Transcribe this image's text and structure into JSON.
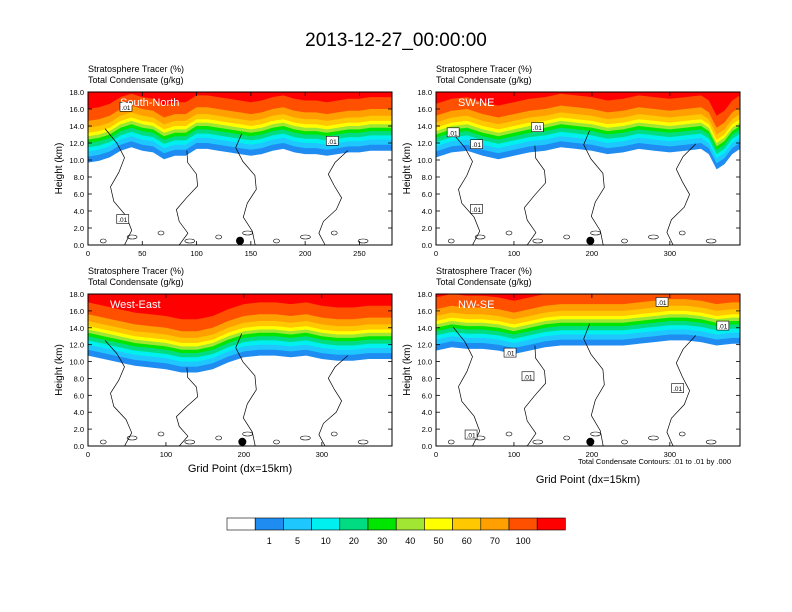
{
  "page": {
    "title": "2013-12-27_00:00:00"
  },
  "colorbar": {
    "colors": [
      "#ffffff",
      "#1e8cf0",
      "#1ec8ff",
      "#00f0f0",
      "#00dc82",
      "#00e600",
      "#a0e632",
      "#ffff00",
      "#ffc800",
      "#ffa000",
      "#ff5000",
      "#ff0000"
    ],
    "labels": [
      "1",
      "5",
      "10",
      "20",
      "30",
      "40",
      "50",
      "60",
      "70",
      "100"
    ]
  },
  "contour_note": "Total Condensate Contours: .01 to .01 by .000",
  "chart_data": [
    {
      "type": "heatmap",
      "label": "South-North",
      "title_left_1": "Stratosphere Tracer",
      "unit_1": "(%)",
      "title_left_2": "Total Condensate",
      "unit_2": "(g/kg)",
      "ylabel": "Height (km)",
      "xlabel": "",
      "xlim": [
        0,
        280
      ],
      "ylim": [
        0,
        18
      ],
      "xticks": [
        "0",
        "50",
        "100",
        "150",
        "200",
        "250"
      ],
      "xtick_values": [
        0,
        50,
        100,
        150,
        200,
        250
      ],
      "yticks": [
        "0.0",
        "2.0",
        "4.0",
        "6.0",
        "8.0",
        "10.0",
        "12.0",
        "14.0",
        "16.0",
        "18.0"
      ],
      "tropopause_top": [
        [
          0,
          13.8
        ],
        [
          10,
          14.0
        ],
        [
          20,
          14.4
        ],
        [
          30,
          15.2
        ],
        [
          40,
          15.6
        ],
        [
          50,
          15.2
        ],
        [
          60,
          15.0
        ],
        [
          70,
          14.2
        ],
        [
          80,
          14.6
        ],
        [
          90,
          14.6
        ],
        [
          100,
          15.4
        ],
        [
          110,
          15.4
        ],
        [
          120,
          15.2
        ],
        [
          130,
          15.0
        ],
        [
          140,
          14.8
        ],
        [
          150,
          14.6
        ],
        [
          160,
          14.8
        ],
        [
          170,
          15.2
        ],
        [
          180,
          15.4
        ],
        [
          190,
          15.0
        ],
        [
          200,
          14.8
        ],
        [
          210,
          14.8
        ],
        [
          220,
          14.6
        ],
        [
          230,
          14.8
        ],
        [
          240,
          15.0
        ],
        [
          250,
          15.0
        ],
        [
          260,
          15.2
        ],
        [
          270,
          15.2
        ],
        [
          280,
          15.2
        ]
      ],
      "marker_x": 140,
      "contour_labels": [
        {
          "text": ".01",
          "x": 32,
          "y": 3.0
        },
        {
          "text": ".01",
          "x": 225,
          "y": 12.2
        },
        {
          "text": ".01",
          "x": 35,
          "y": 16.2
        }
      ]
    },
    {
      "type": "heatmap",
      "label": "SW-NE",
      "title_left_1": "Stratosphere Tracer",
      "unit_1": "(%)",
      "title_left_2": "Total Condensate",
      "unit_2": "(g/kg)",
      "ylabel": "Height (km)",
      "xlabel": "",
      "xlim": [
        0,
        390
      ],
      "ylim": [
        0,
        18
      ],
      "xticks": [
        "0",
        "100",
        "200",
        "300"
      ],
      "xtick_values": [
        0,
        100,
        200,
        300
      ],
      "yticks": [
        "0.0",
        "2.0",
        "4.0",
        "6.0",
        "8.0",
        "10.0",
        "12.0",
        "14.0",
        "16.0",
        "18.0"
      ],
      "tropopause_top": [
        [
          0,
          14.4
        ],
        [
          20,
          15.0
        ],
        [
          40,
          15.2
        ],
        [
          60,
          14.6
        ],
        [
          80,
          14.2
        ],
        [
          100,
          14.6
        ],
        [
          120,
          15.0
        ],
        [
          140,
          15.2
        ],
        [
          160,
          15.6
        ],
        [
          180,
          15.4
        ],
        [
          200,
          15.2
        ],
        [
          220,
          14.8
        ],
        [
          240,
          15.0
        ],
        [
          260,
          15.4
        ],
        [
          280,
          15.2
        ],
        [
          300,
          15.0
        ],
        [
          320,
          15.2
        ],
        [
          340,
          15.4
        ],
        [
          350,
          14.8
        ],
        [
          360,
          13.0
        ],
        [
          370,
          13.6
        ],
        [
          380,
          14.8
        ],
        [
          390,
          15.4
        ]
      ],
      "marker_x": 198,
      "contour_labels": [
        {
          "text": ".01",
          "x": 22,
          "y": 13.2
        },
        {
          "text": ".01",
          "x": 52,
          "y": 11.8
        },
        {
          "text": ".01",
          "x": 130,
          "y": 13.8
        },
        {
          "text": ".01",
          "x": 52,
          "y": 4.2
        }
      ]
    },
    {
      "type": "heatmap",
      "label": "West-East",
      "title_left_1": "Stratosphere Tracer",
      "unit_1": "(%)",
      "title_left_2": "Total Condensate",
      "unit_2": "(g/kg)",
      "ylabel": "Height (km)",
      "xlabel": "Grid Point (dx=15km)",
      "xlim": [
        0,
        390
      ],
      "ylim": [
        0,
        18
      ],
      "xticks": [
        "0",
        "100",
        "200",
        "300"
      ],
      "xtick_values": [
        0,
        100,
        200,
        300
      ],
      "yticks": [
        "0.0",
        "2.0",
        "4.0",
        "6.0",
        "8.0",
        "10.0",
        "12.0",
        "14.0",
        "16.0",
        "18.0"
      ],
      "tropopause_top": [
        [
          0,
          14.8
        ],
        [
          20,
          14.4
        ],
        [
          40,
          14.0
        ],
        [
          60,
          13.6
        ],
        [
          80,
          13.4
        ],
        [
          100,
          13.2
        ],
        [
          120,
          12.8
        ],
        [
          140,
          12.8
        ],
        [
          160,
          13.2
        ],
        [
          180,
          14.0
        ],
        [
          200,
          14.6
        ],
        [
          220,
          14.8
        ],
        [
          240,
          14.8
        ],
        [
          260,
          14.6
        ],
        [
          280,
          14.8
        ],
        [
          300,
          14.4
        ],
        [
          320,
          14.2
        ],
        [
          340,
          14.2
        ],
        [
          360,
          14.4
        ],
        [
          380,
          14.4
        ],
        [
          390,
          14.4
        ]
      ],
      "marker_x": 198,
      "contour_labels": []
    },
    {
      "type": "heatmap",
      "label": "NW-SE",
      "title_left_1": "Stratosphere Tracer",
      "unit_1": "(%)",
      "title_left_2": "Total Condensate",
      "unit_2": "(g/kg)",
      "ylabel": "Height (km)",
      "xlabel": "Grid Point (dx=15km)",
      "xlim": [
        0,
        390
      ],
      "ylim": [
        0,
        18
      ],
      "xticks": [
        "0",
        "100",
        "200",
        "300"
      ],
      "xtick_values": [
        0,
        100,
        200,
        300
      ],
      "yticks": [
        "0.0",
        "2.0",
        "4.0",
        "6.0",
        "8.0",
        "10.0",
        "12.0",
        "14.0",
        "16.0",
        "18.0"
      ],
      "tropopause_top": [
        [
          0,
          15.4
        ],
        [
          20,
          15.8
        ],
        [
          40,
          15.6
        ],
        [
          60,
          15.6
        ],
        [
          80,
          15.4
        ],
        [
          100,
          15.0
        ],
        [
          120,
          15.4
        ],
        [
          140,
          15.8
        ],
        [
          160,
          16.0
        ],
        [
          180,
          16.0
        ],
        [
          200,
          16.0
        ],
        [
          220,
          16.0
        ],
        [
          240,
          16.0
        ],
        [
          260,
          16.2
        ],
        [
          280,
          16.4
        ],
        [
          300,
          16.6
        ],
        [
          320,
          16.6
        ],
        [
          340,
          16.4
        ],
        [
          360,
          16.0
        ],
        [
          380,
          16.2
        ],
        [
          390,
          16.2
        ]
      ],
      "marker_x": 198,
      "contour_labels": [
        {
          "text": ".01",
          "x": 290,
          "y": 17.0
        },
        {
          "text": ".01",
          "x": 368,
          "y": 14.2
        },
        {
          "text": ".01",
          "x": 95,
          "y": 11.0
        },
        {
          "text": ".01",
          "x": 118,
          "y": 8.2
        },
        {
          "text": ".01",
          "x": 310,
          "y": 6.8
        },
        {
          "text": ".01",
          "x": 45,
          "y": 1.3
        }
      ]
    }
  ]
}
